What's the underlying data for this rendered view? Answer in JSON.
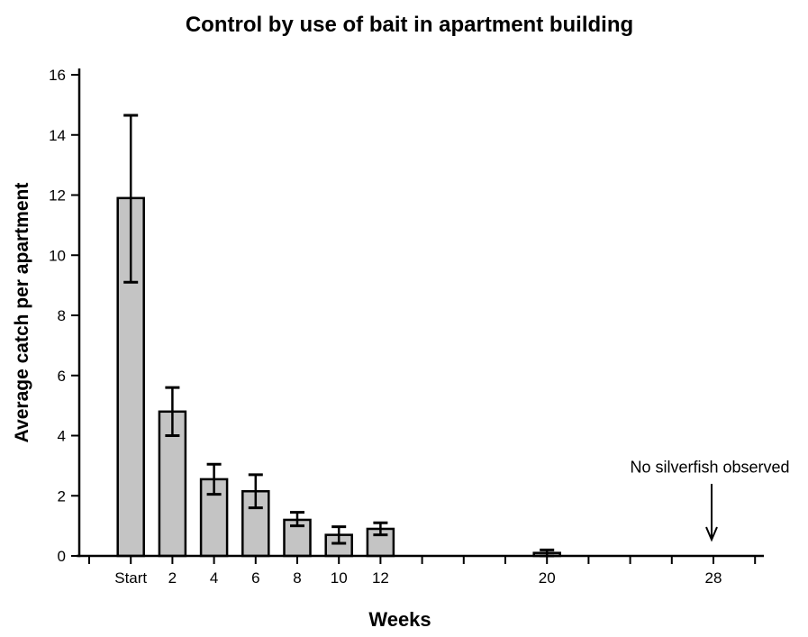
{
  "figure": {
    "background": "#ffffff"
  },
  "chart_data": {
    "type": "bar",
    "title": "Control by use of bait in apartment building",
    "xlabel": "Weeks",
    "ylabel": "Average catch per apartment",
    "categories": [
      "Start",
      "2",
      "4",
      "6",
      "8",
      "10",
      "12",
      "20"
    ],
    "week_positions": [
      0,
      2,
      4,
      6,
      8,
      10,
      12,
      20
    ],
    "values": [
      11.9,
      4.8,
      2.55,
      2.15,
      1.2,
      0.7,
      0.9,
      0.1
    ],
    "error_low": [
      9.1,
      4.0,
      2.05,
      1.6,
      1.0,
      0.42,
      0.7,
      0.0
    ],
    "error_high": [
      14.65,
      5.6,
      3.05,
      2.7,
      1.45,
      0.97,
      1.1,
      0.2
    ],
    "ylim": [
      0,
      16
    ],
    "y_ticks": [
      0,
      2,
      4,
      6,
      8,
      10,
      12,
      14,
      16
    ],
    "x_ticks": [
      {
        "week": -2,
        "label": ""
      },
      {
        "week": 0,
        "label": "Start"
      },
      {
        "week": 2,
        "label": "2"
      },
      {
        "week": 4,
        "label": "4"
      },
      {
        "week": 6,
        "label": "6"
      },
      {
        "week": 8,
        "label": "8"
      },
      {
        "week": 10,
        "label": "10"
      },
      {
        "week": 12,
        "label": "12"
      },
      {
        "week": 14,
        "label": ""
      },
      {
        "week": 16,
        "label": ""
      },
      {
        "week": 18,
        "label": ""
      },
      {
        "week": 20,
        "label": "20"
      },
      {
        "week": 22,
        "label": ""
      },
      {
        "week": 24,
        "label": ""
      },
      {
        "week": 26,
        "label": ""
      },
      {
        "week": 28,
        "label": "28"
      },
      {
        "week": 30,
        "label": ""
      }
    ],
    "annotation": {
      "text": "No silverfish observed",
      "week": 28
    },
    "grid": false,
    "legend": "none",
    "bar_fill": "#c4c4c4",
    "bar_border": "#000000",
    "axis_color": "#000000"
  }
}
